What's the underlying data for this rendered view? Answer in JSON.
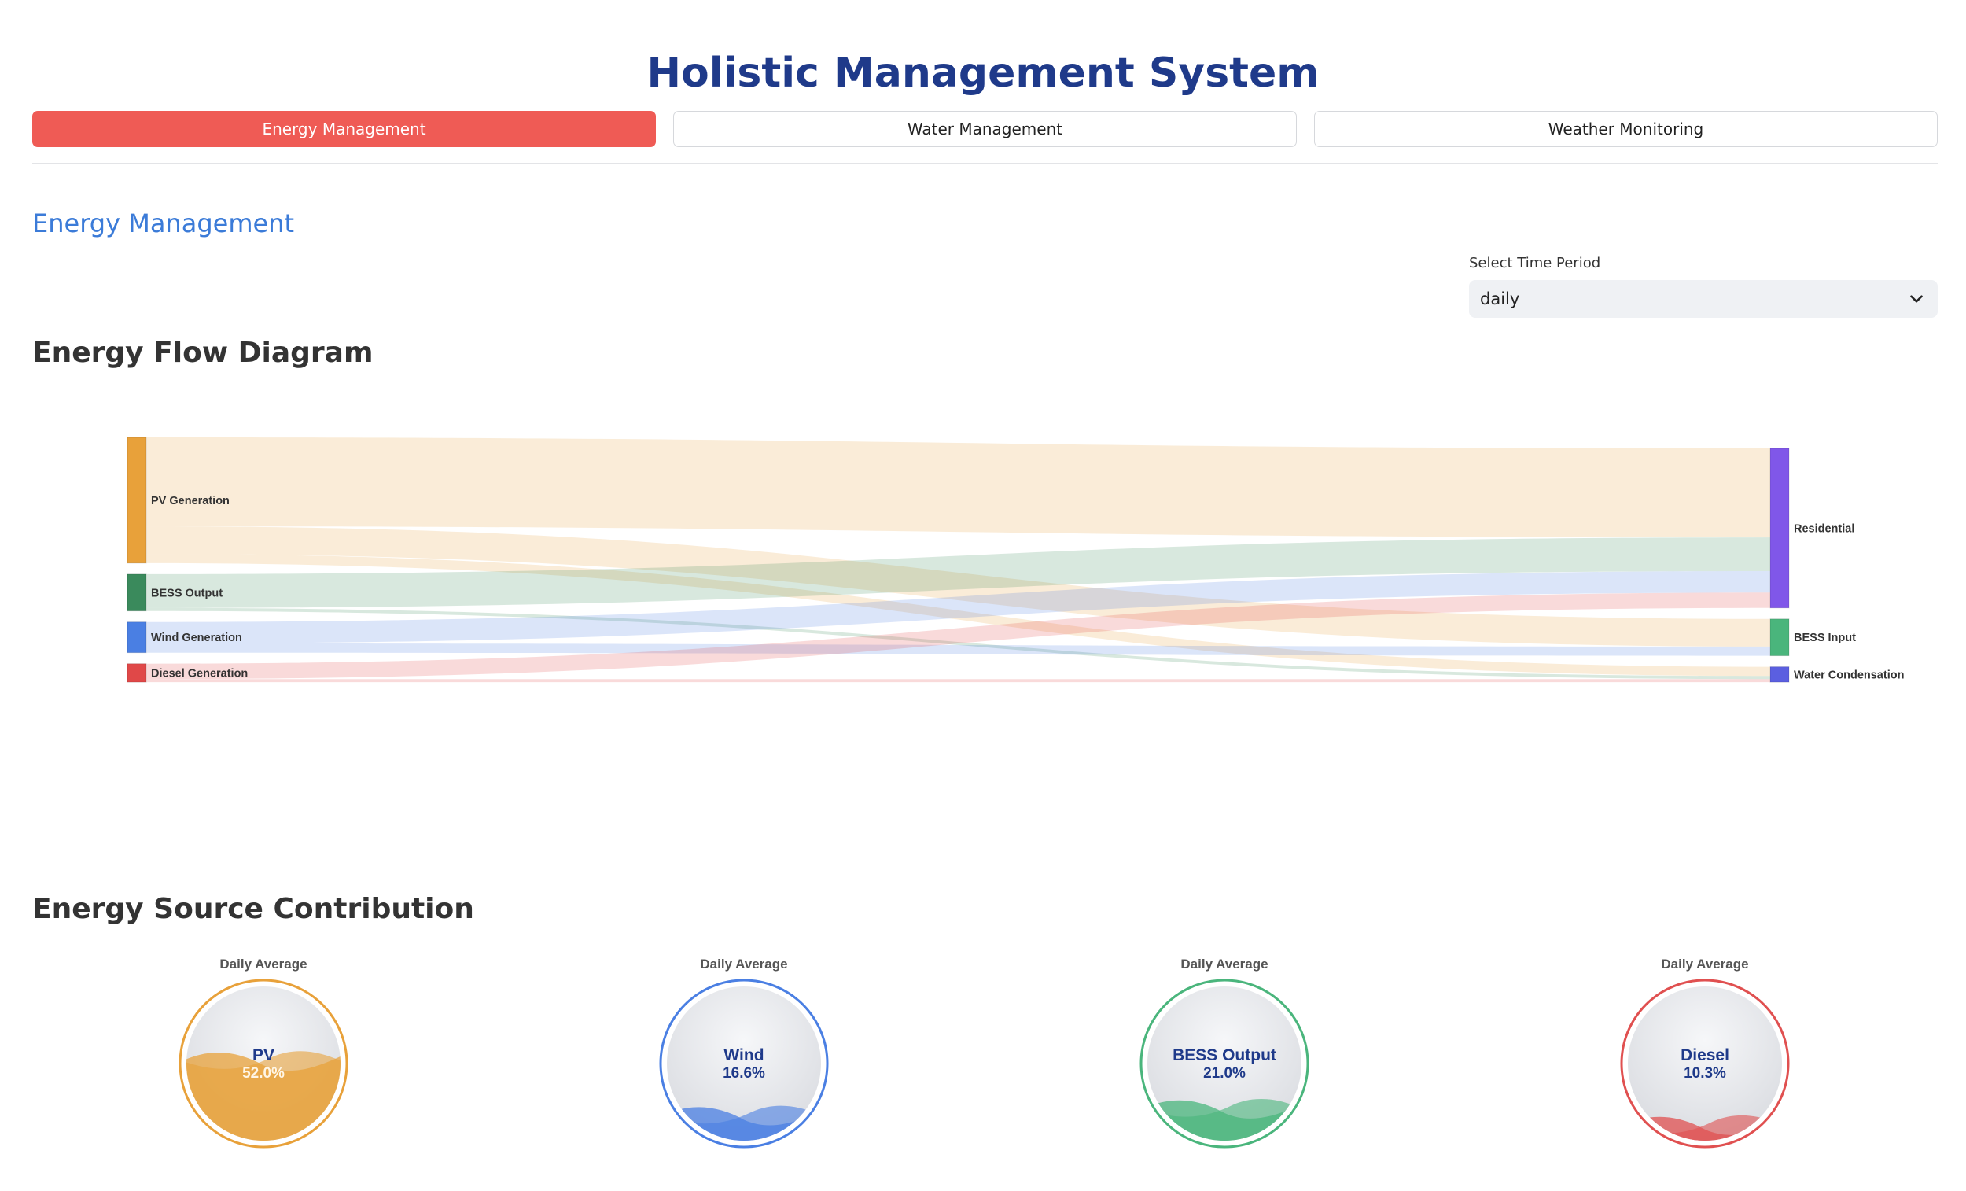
{
  "app": {
    "title": "Holistic Management System"
  },
  "tabs": [
    {
      "label": "Energy Management",
      "active": true
    },
    {
      "label": "Water Management",
      "active": false
    },
    {
      "label": "Weather Monitoring",
      "active": false
    }
  ],
  "section": {
    "title": "Energy Management"
  },
  "period": {
    "label": "Select Time Period",
    "value": "daily"
  },
  "flow": {
    "heading": "Energy Flow Diagram",
    "chart_data": {
      "type": "sankey",
      "sources": [
        {
          "name": "PV Generation",
          "color": "#e8a13a"
        },
        {
          "name": "BESS Output",
          "color": "#3a8a5c"
        },
        {
          "name": "Wind Generation",
          "color": "#4a7fe3"
        },
        {
          "name": "Diesel Generation",
          "color": "#e04848"
        }
      ],
      "targets": [
        {
          "name": "Residential",
          "color": "#8057e9"
        },
        {
          "name": "BESS Input",
          "color": "#4ab57c"
        },
        {
          "name": "Water Condensation",
          "color": "#5b5fe0"
        }
      ],
      "links": [
        {
          "source": "PV Generation",
          "target": "Residential",
          "value": 29
        },
        {
          "source": "PV Generation",
          "target": "BESS Input",
          "value": 9
        },
        {
          "source": "PV Generation",
          "target": "Water Condensation",
          "value": 3
        },
        {
          "source": "BESS Output",
          "target": "Residential",
          "value": 11
        },
        {
          "source": "BESS Output",
          "target": "Water Condensation",
          "value": 1
        },
        {
          "source": "Wind Generation",
          "target": "Residential",
          "value": 7
        },
        {
          "source": "Wind Generation",
          "target": "BESS Input",
          "value": 3
        },
        {
          "source": "Diesel Generation",
          "target": "Residential",
          "value": 5
        },
        {
          "source": "Diesel Generation",
          "target": "Water Condensation",
          "value": 1
        }
      ]
    }
  },
  "contribution": {
    "heading": "Energy Source Contribution",
    "gauges": [
      {
        "caption": "Daily Average",
        "name": "PV",
        "value": 52.0,
        "value_label": "52.0%",
        "color": "#e8a13a"
      },
      {
        "caption": "Daily Average",
        "name": "Wind",
        "value": 16.6,
        "value_label": "16.6%",
        "color": "#4a7fe3"
      },
      {
        "caption": "Daily Average",
        "name": "BESS Output",
        "value": 21.0,
        "value_label": "21.0%",
        "color": "#4ab57c"
      },
      {
        "caption": "Daily Average",
        "name": "Diesel",
        "value": 10.3,
        "value_label": "10.3%",
        "color": "#e05050"
      }
    ]
  }
}
